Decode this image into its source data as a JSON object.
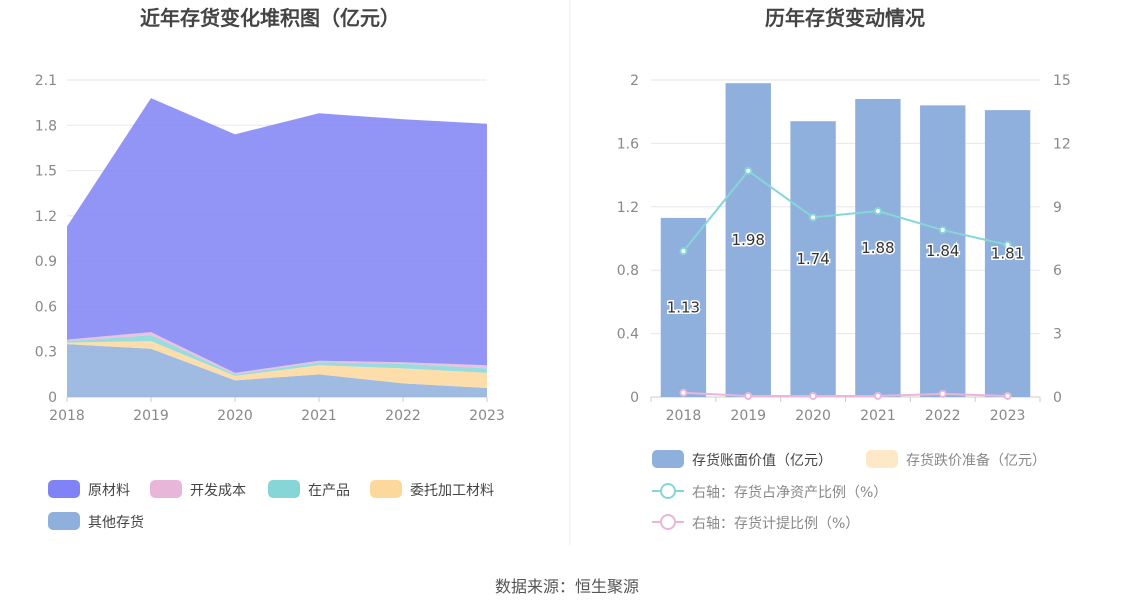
{
  "source": "数据来源：恒生聚源",
  "chart_data": [
    {
      "type": "area",
      "title": "近年存货变化堆积图（亿元）",
      "x": [
        "2018",
        "2019",
        "2020",
        "2021",
        "2022",
        "2023"
      ],
      "ylim": [
        0,
        2.1
      ],
      "yticks": [
        "0",
        "0.3",
        "0.6",
        "0.9",
        "1.2",
        "1.5",
        "1.8",
        "2.1"
      ],
      "grid": true,
      "legend_position": "bottom",
      "series": [
        {
          "name": "其他存货",
          "color": "#8fafdc",
          "values": [
            0.35,
            0.32,
            0.11,
            0.15,
            0.09,
            0.06
          ]
        },
        {
          "name": "委托加工材料",
          "color": "#fdd89c",
          "values": [
            0.01,
            0.05,
            0.03,
            0.06,
            0.1,
            0.1
          ]
        },
        {
          "name": "在产品",
          "color": "#86d6d8",
          "values": [
            0.01,
            0.04,
            0.01,
            0.02,
            0.03,
            0.03
          ]
        },
        {
          "name": "开发成本",
          "color": "#e8b6d9",
          "values": [
            0.01,
            0.02,
            0.01,
            0.01,
            0.01,
            0.02
          ]
        },
        {
          "name": "原材料",
          "color": "#7f83f5",
          "values": [
            0.75,
            1.55,
            1.58,
            1.64,
            1.61,
            1.6
          ]
        }
      ],
      "legend_order": [
        "原材料",
        "开发成本",
        "在产品",
        "委托加工材料",
        "其他存货"
      ]
    },
    {
      "type": "bar",
      "title": "历年存货变动情况",
      "categories": [
        "2018",
        "2019",
        "2020",
        "2021",
        "2022",
        "2023"
      ],
      "ylim": [
        0,
        2
      ],
      "yticks": [
        "0",
        "0.4",
        "0.8",
        "1.2",
        "1.6",
        "2"
      ],
      "y2lim": [
        0,
        15
      ],
      "y2ticks": [
        "0",
        "3",
        "6",
        "9",
        "12",
        "15"
      ],
      "grid": true,
      "legend_position": "bottom",
      "series": [
        {
          "name": "存货账面价值（亿元）",
          "type": "bar",
          "axis": "left",
          "color": "#8fafdc",
          "values": [
            1.13,
            1.98,
            1.74,
            1.88,
            1.84,
            1.81
          ],
          "labels": [
            "1.13",
            "1.98",
            "1.74",
            "1.88",
            "1.84",
            "1.81"
          ]
        },
        {
          "name": "存货跌价准备（亿元）",
          "type": "bar",
          "axis": "left",
          "color": "#fde8c8",
          "values": [
            0,
            0,
            0,
            0,
            0,
            0
          ]
        },
        {
          "name": "右轴：存货占净资产比例（%）",
          "type": "line",
          "axis": "right",
          "color": "#86d6d8",
          "values": [
            6.9,
            10.7,
            8.5,
            8.8,
            7.9,
            7.2
          ]
        },
        {
          "name": "右轴：存货计提比例（%）",
          "type": "line",
          "axis": "right",
          "color": "#e8b6d9",
          "values": [
            0.2,
            0.05,
            0.05,
            0.05,
            0.15,
            0.05
          ]
        }
      ]
    }
  ]
}
